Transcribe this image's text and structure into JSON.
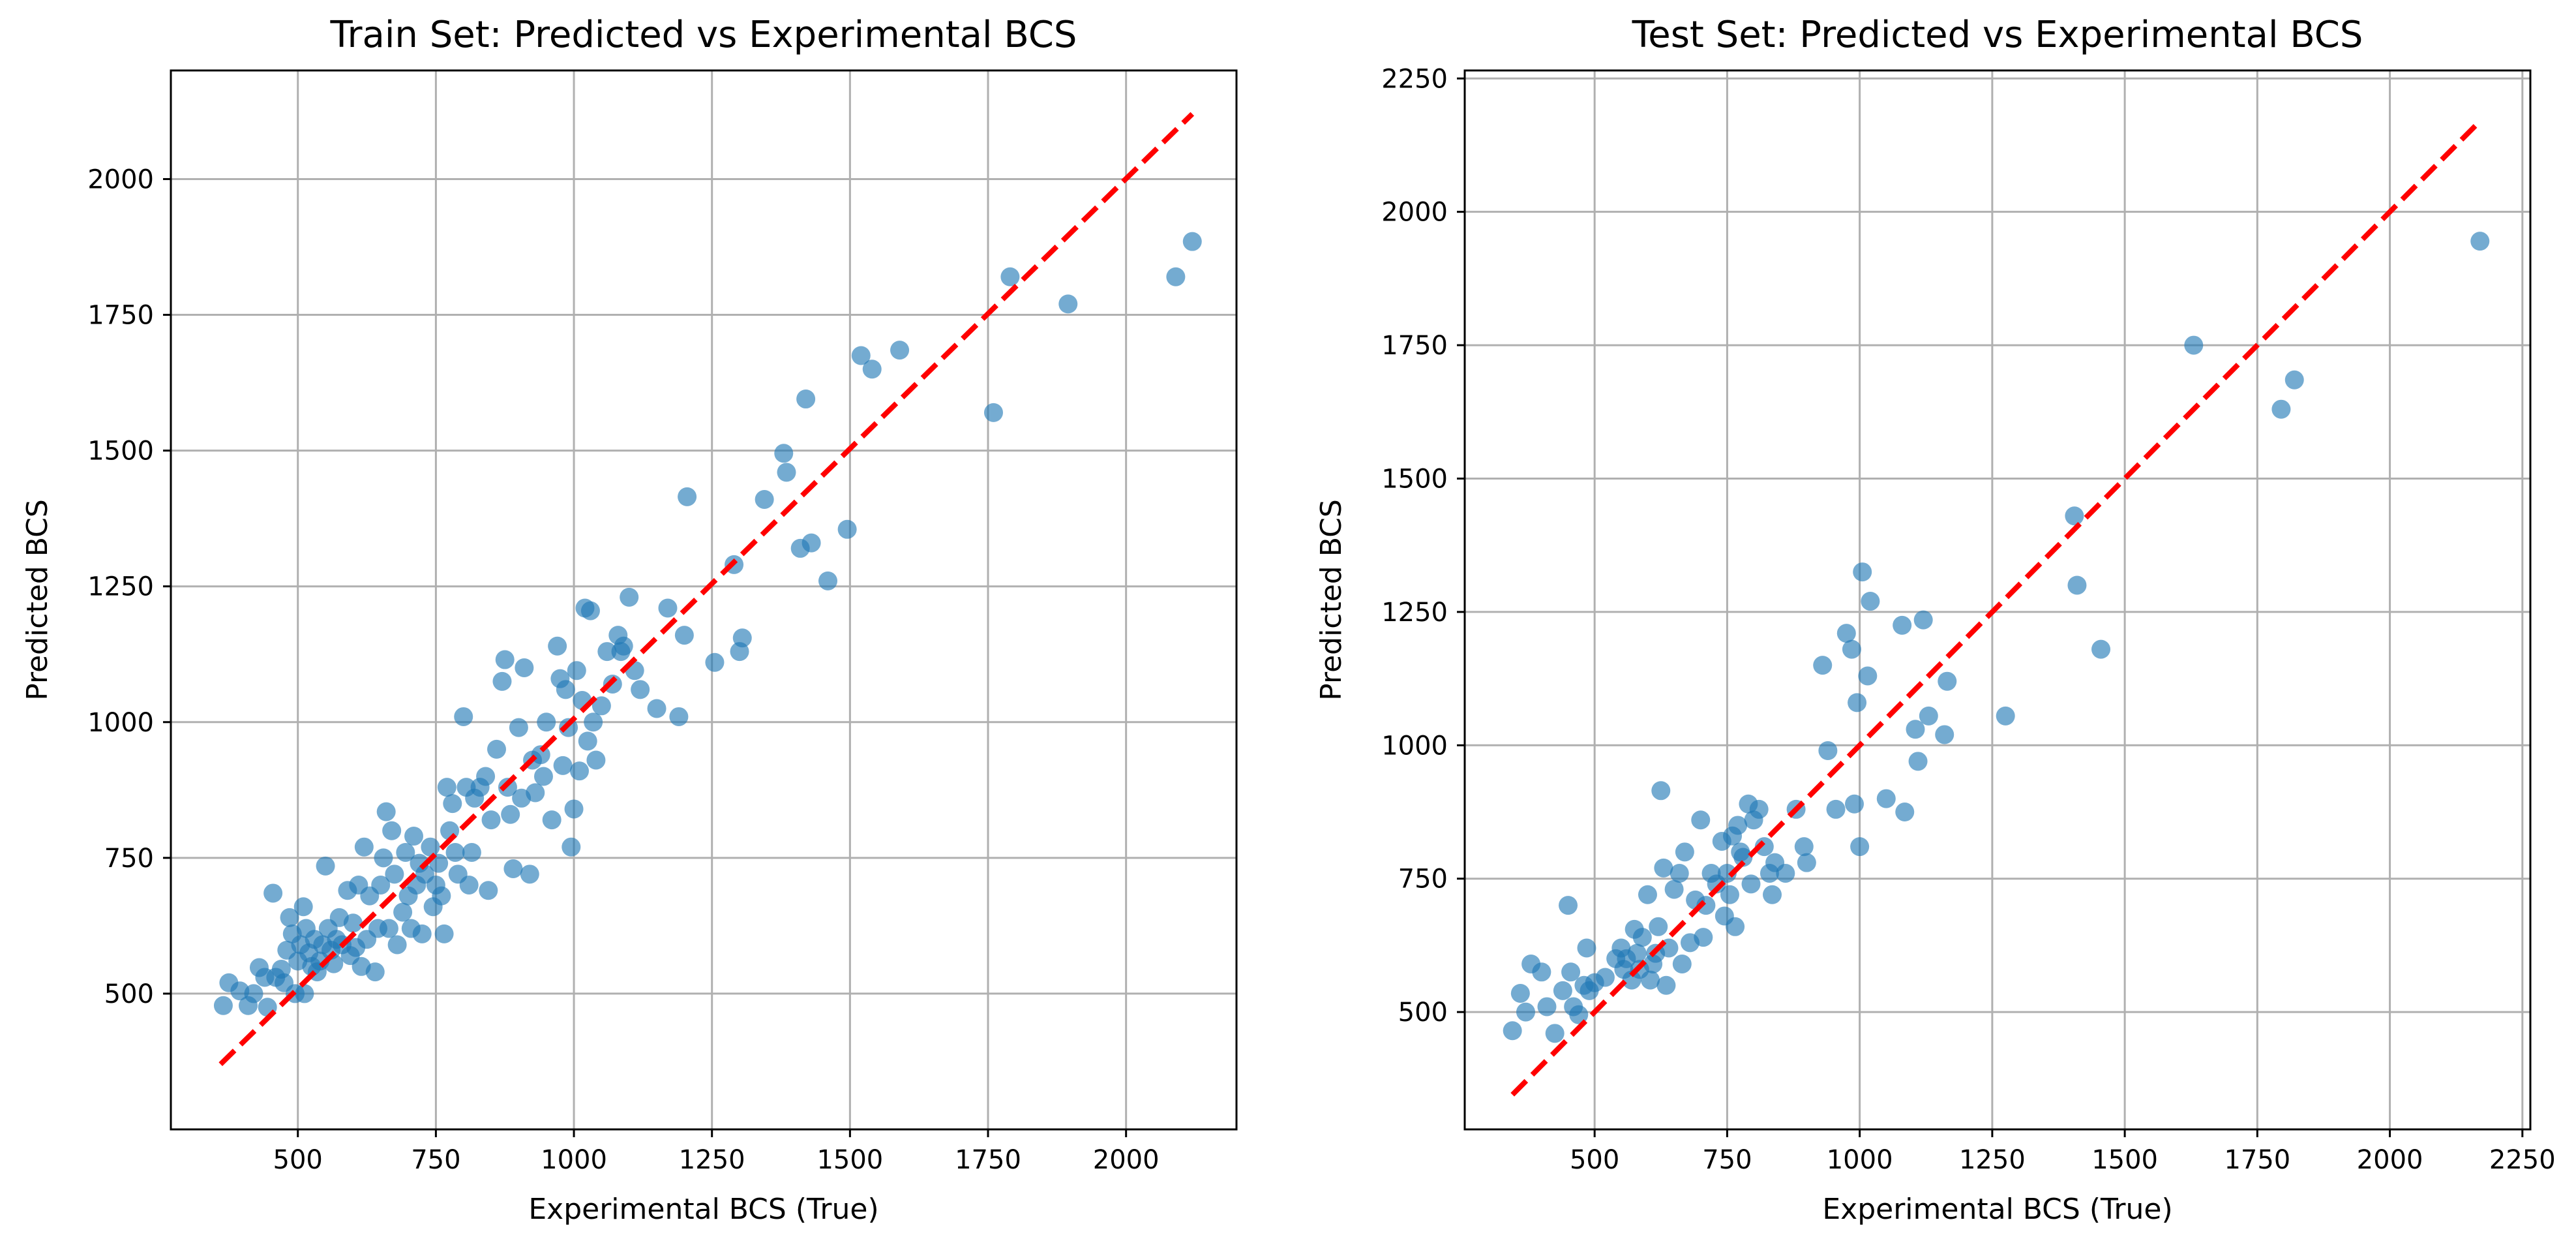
{
  "chart_data": [
    {
      "type": "scatter",
      "title": "Train Set: Predicted vs Experimental BCS",
      "xlabel": "Experimental BCS (True)",
      "ylabel": "Predicted BCS",
      "xlim": [
        270,
        2200
      ],
      "ylim": [
        250,
        2200
      ],
      "xticks": [
        500,
        750,
        1000,
        1250,
        1500,
        1750,
        2000
      ],
      "yticks": [
        500,
        750,
        1000,
        1250,
        1500,
        1750,
        2000
      ],
      "grid": true,
      "point_color": "#1f77b4",
      "reference_line": {
        "style": "dashed",
        "color": "#ff0000",
        "from": [
          360,
          370
        ],
        "to": [
          2120,
          2120
        ]
      },
      "series": [
        {
          "name": "train",
          "points": [
            [
              365,
              478
            ],
            [
              375,
              520
            ],
            [
              395,
              505
            ],
            [
              410,
              478
            ],
            [
              420,
              500
            ],
            [
              430,
              548
            ],
            [
              440,
              530
            ],
            [
              445,
              475
            ],
            [
              455,
              685
            ],
            [
              460,
              530
            ],
            [
              470,
              545
            ],
            [
              475,
              520
            ],
            [
              480,
              580
            ],
            [
              485,
              640
            ],
            [
              490,
              610
            ],
            [
              495,
              500
            ],
            [
              500,
              560
            ],
            [
              505,
              590
            ],
            [
              510,
              660
            ],
            [
              512,
              500
            ],
            [
              515,
              620
            ],
            [
              520,
              575
            ],
            [
              525,
              550
            ],
            [
              530,
              600
            ],
            [
              535,
              540
            ],
            [
              540,
              560
            ],
            [
              545,
              590
            ],
            [
              550,
              735
            ],
            [
              555,
              620
            ],
            [
              560,
              580
            ],
            [
              565,
              555
            ],
            [
              570,
              600
            ],
            [
              575,
              640
            ],
            [
              580,
              590
            ],
            [
              590,
              690
            ],
            [
              595,
              570
            ],
            [
              600,
              630
            ],
            [
              605,
              585
            ],
            [
              610,
              700
            ],
            [
              615,
              550
            ],
            [
              620,
              770
            ],
            [
              625,
              600
            ],
            [
              630,
              680
            ],
            [
              640,
              540
            ],
            [
              645,
              620
            ],
            [
              650,
              700
            ],
            [
              655,
              750
            ],
            [
              660,
              835
            ],
            [
              665,
              620
            ],
            [
              670,
              800
            ],
            [
              675,
              720
            ],
            [
              680,
              590
            ],
            [
              690,
              650
            ],
            [
              695,
              760
            ],
            [
              700,
              680
            ],
            [
              705,
              620
            ],
            [
              710,
              790
            ],
            [
              715,
              700
            ],
            [
              720,
              740
            ],
            [
              725,
              610
            ],
            [
              730,
              720
            ],
            [
              740,
              770
            ],
            [
              745,
              660
            ],
            [
              750,
              700
            ],
            [
              755,
              740
            ],
            [
              760,
              680
            ],
            [
              765,
              610
            ],
            [
              770,
              880
            ],
            [
              775,
              800
            ],
            [
              780,
              850
            ],
            [
              785,
              760
            ],
            [
              790,
              720
            ],
            [
              800,
              1010
            ],
            [
              805,
              880
            ],
            [
              810,
              700
            ],
            [
              815,
              760
            ],
            [
              820,
              860
            ],
            [
              830,
              880
            ],
            [
              840,
              900
            ],
            [
              845,
              690
            ],
            [
              850,
              820
            ],
            [
              860,
              950
            ],
            [
              870,
              1075
            ],
            [
              875,
              1115
            ],
            [
              880,
              880
            ],
            [
              885,
              830
            ],
            [
              890,
              730
            ],
            [
              900,
              990
            ],
            [
              905,
              860
            ],
            [
              910,
              1100
            ],
            [
              920,
              720
            ],
            [
              925,
              930
            ],
            [
              930,
              870
            ],
            [
              940,
              940
            ],
            [
              945,
              900
            ],
            [
              950,
              1000
            ],
            [
              960,
              820
            ],
            [
              970,
              1140
            ],
            [
              975,
              1080
            ],
            [
              980,
              920
            ],
            [
              985,
              1060
            ],
            [
              990,
              990
            ],
            [
              995,
              770
            ],
            [
              1000,
              840
            ],
            [
              1005,
              1095
            ],
            [
              1010,
              910
            ],
            [
              1015,
              1040
            ],
            [
              1020,
              1210
            ],
            [
              1025,
              965
            ],
            [
              1030,
              1205
            ],
            [
              1035,
              1000
            ],
            [
              1040,
              930
            ],
            [
              1050,
              1030
            ],
            [
              1060,
              1130
            ],
            [
              1070,
              1070
            ],
            [
              1080,
              1160
            ],
            [
              1085,
              1130
            ],
            [
              1090,
              1140
            ],
            [
              1100,
              1230
            ],
            [
              1110,
              1095
            ],
            [
              1120,
              1060
            ],
            [
              1150,
              1025
            ],
            [
              1170,
              1210
            ],
            [
              1190,
              1010
            ],
            [
              1200,
              1160
            ],
            [
              1205,
              1415
            ],
            [
              1255,
              1110
            ],
            [
              1290,
              1290
            ],
            [
              1300,
              1130
            ],
            [
              1305,
              1155
            ],
            [
              1345,
              1410
            ],
            [
              1380,
              1495
            ],
            [
              1385,
              1460
            ],
            [
              1410,
              1320
            ],
            [
              1420,
              1595
            ],
            [
              1430,
              1330
            ],
            [
              1460,
              1260
            ],
            [
              1495,
              1355
            ],
            [
              1520,
              1675
            ],
            [
              1540,
              1650
            ],
            [
              1590,
              1685
            ],
            [
              1760,
              1570
            ],
            [
              1790,
              1820
            ],
            [
              1895,
              1770
            ],
            [
              2090,
              1820
            ],
            [
              2120,
              1885
            ]
          ]
        }
      ]
    },
    {
      "type": "scatter",
      "title": "Test Set: Predicted vs Experimental BCS",
      "xlabel": "Experimental BCS (True)",
      "ylabel": "Predicted BCS",
      "xlim": [
        255,
        2265
      ],
      "ylim": [
        280,
        2265
      ],
      "xticks": [
        500,
        750,
        1000,
        1250,
        1500,
        1750,
        2000,
        2250
      ],
      "yticks": [
        500,
        750,
        1000,
        1250,
        1500,
        1750,
        2000,
        2250
      ],
      "grid": true,
      "point_color": "#1f77b4",
      "reference_line": {
        "style": "dashed",
        "color": "#ff0000",
        "from": [
          345,
          345
        ],
        "to": [
          2170,
          2170
        ]
      },
      "series": [
        {
          "name": "test",
          "points": [
            [
              345,
              465
            ],
            [
              360,
              535
            ],
            [
              370,
              500
            ],
            [
              380,
              590
            ],
            [
              400,
              575
            ],
            [
              410,
              510
            ],
            [
              425,
              460
            ],
            [
              440,
              540
            ],
            [
              450,
              700
            ],
            [
              455,
              575
            ],
            [
              460,
              510
            ],
            [
              470,
              495
            ],
            [
              480,
              550
            ],
            [
              485,
              620
            ],
            [
              490,
              540
            ],
            [
              500,
              555
            ],
            [
              520,
              565
            ],
            [
              540,
              600
            ],
            [
              550,
              620
            ],
            [
              555,
              580
            ],
            [
              560,
              600
            ],
            [
              570,
              560
            ],
            [
              575,
              655
            ],
            [
              580,
              610
            ],
            [
              585,
              580
            ],
            [
              590,
              640
            ],
            [
              600,
              720
            ],
            [
              605,
              560
            ],
            [
              610,
              590
            ],
            [
              615,
              610
            ],
            [
              620,
              660
            ],
            [
              625,
              915
            ],
            [
              630,
              770
            ],
            [
              635,
              550
            ],
            [
              640,
              620
            ],
            [
              650,
              730
            ],
            [
              660,
              760
            ],
            [
              665,
              590
            ],
            [
              670,
              800
            ],
            [
              680,
              630
            ],
            [
              690,
              710
            ],
            [
              700,
              860
            ],
            [
              705,
              640
            ],
            [
              710,
              700
            ],
            [
              720,
              760
            ],
            [
              730,
              740
            ],
            [
              740,
              820
            ],
            [
              745,
              680
            ],
            [
              750,
              760
            ],
            [
              755,
              720
            ],
            [
              760,
              830
            ],
            [
              765,
              660
            ],
            [
              770,
              850
            ],
            [
              775,
              800
            ],
            [
              780,
              790
            ],
            [
              790,
              890
            ],
            [
              795,
              740
            ],
            [
              800,
              860
            ],
            [
              810,
              880
            ],
            [
              820,
              810
            ],
            [
              830,
              760
            ],
            [
              835,
              720
            ],
            [
              840,
              780
            ],
            [
              860,
              760
            ],
            [
              880,
              880
            ],
            [
              895,
              810
            ],
            [
              900,
              780
            ],
            [
              930,
              1150
            ],
            [
              940,
              990
            ],
            [
              955,
              880
            ],
            [
              975,
              1210
            ],
            [
              985,
              1180
            ],
            [
              990,
              890
            ],
            [
              995,
              1080
            ],
            [
              1000,
              810
            ],
            [
              1005,
              1325
            ],
            [
              1015,
              1130
            ],
            [
              1020,
              1270
            ],
            [
              1050,
              900
            ],
            [
              1080,
              1225
            ],
            [
              1085,
              875
            ],
            [
              1105,
              1030
            ],
            [
              1110,
              970
            ],
            [
              1120,
              1235
            ],
            [
              1130,
              1055
            ],
            [
              1160,
              1020
            ],
            [
              1165,
              1120
            ],
            [
              1275,
              1055
            ],
            [
              1405,
              1430
            ],
            [
              1410,
              1300
            ],
            [
              1455,
              1180
            ],
            [
              1630,
              1750
            ],
            [
              1795,
              1630
            ],
            [
              1820,
              1685
            ],
            [
              2170,
              1945
            ]
          ]
        }
      ]
    }
  ]
}
